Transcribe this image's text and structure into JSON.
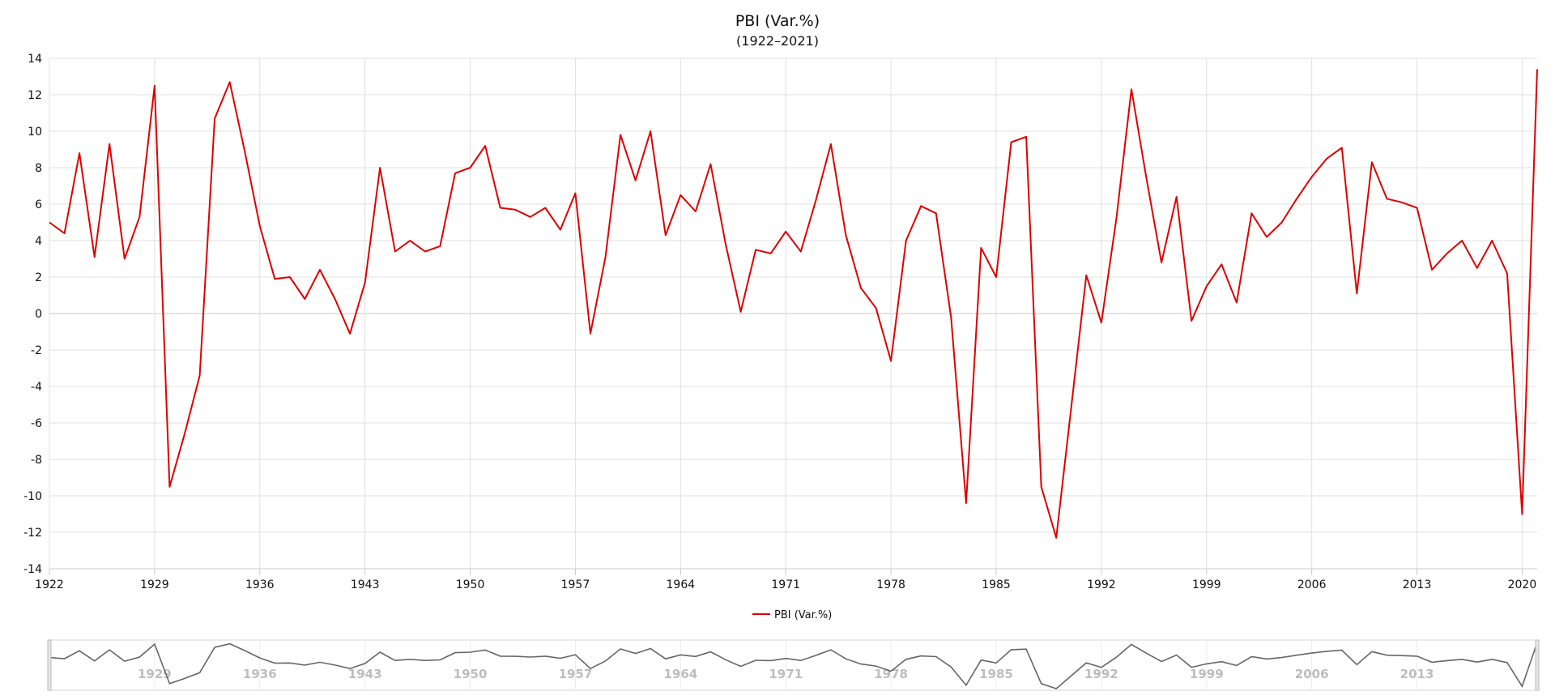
{
  "chart_data": {
    "type": "line",
    "title": "PBI (Var.%)",
    "subtitle": "(1922–2021)",
    "xlabel": "",
    "ylabel": "",
    "xlim": [
      1922,
      2021
    ],
    "ylim": [
      -14,
      14
    ],
    "x_ticks": [
      1922,
      1929,
      1936,
      1943,
      1950,
      1957,
      1964,
      1971,
      1978,
      1985,
      1992,
      1999,
      2006,
      2013,
      2020
    ],
    "y_ticks": [
      -14,
      -12,
      -10,
      -8,
      -6,
      -4,
      -2,
      0,
      2,
      4,
      6,
      8,
      10,
      12,
      14
    ],
    "grid": true,
    "legend": "bottom-center",
    "navigator_labels": [
      1929,
      1936,
      1943,
      1950,
      1957,
      1964,
      1971,
      1978,
      1985,
      1992,
      1999,
      2006,
      2013
    ],
    "colors": {
      "series": "#dd0000",
      "navigator": "#666666",
      "grid": "#e0e0e0"
    },
    "series": [
      {
        "name": "PBI (Var.%)",
        "x": [
          1922,
          1923,
          1924,
          1925,
          1926,
          1927,
          1928,
          1929,
          1930,
          1931,
          1932,
          1933,
          1934,
          1935,
          1936,
          1937,
          1938,
          1939,
          1940,
          1941,
          1942,
          1943,
          1944,
          1945,
          1946,
          1947,
          1948,
          1949,
          1950,
          1951,
          1952,
          1953,
          1954,
          1955,
          1956,
          1957,
          1958,
          1959,
          1960,
          1961,
          1962,
          1963,
          1964,
          1965,
          1966,
          1967,
          1968,
          1969,
          1970,
          1971,
          1972,
          1973,
          1974,
          1975,
          1976,
          1977,
          1978,
          1979,
          1980,
          1981,
          1982,
          1983,
          1984,
          1985,
          1986,
          1987,
          1988,
          1989,
          1990,
          1991,
          1992,
          1993,
          1994,
          1995,
          1996,
          1997,
          1998,
          1999,
          2000,
          2001,
          2002,
          2003,
          2004,
          2005,
          2006,
          2007,
          2008,
          2009,
          2010,
          2011,
          2012,
          2013,
          2014,
          2015,
          2016,
          2017,
          2018,
          2019,
          2020,
          2021
        ],
        "values": [
          5.0,
          4.4,
          8.8,
          3.1,
          9.3,
          3.0,
          5.3,
          12.5,
          -9.5,
          -6.6,
          -3.4,
          10.7,
          12.7,
          8.9,
          4.8,
          1.9,
          2.0,
          0.8,
          2.4,
          0.8,
          -1.1,
          1.7,
          8.0,
          3.4,
          4.0,
          3.4,
          3.7,
          7.7,
          8.0,
          9.2,
          5.8,
          5.7,
          5.3,
          5.8,
          4.6,
          6.6,
          -1.1,
          3.1,
          9.8,
          7.3,
          10.0,
          4.3,
          6.5,
          5.6,
          8.2,
          3.8,
          0.1,
          3.5,
          3.3,
          4.5,
          3.4,
          6.2,
          9.3,
          4.3,
          1.4,
          0.3,
          -2.6,
          4.0,
          5.9,
          5.5,
          -0.2,
          -10.4,
          3.6,
          2.0,
          9.4,
          9.7,
          -9.5,
          -12.3,
          -5.1,
          2.1,
          -0.5,
          5.2,
          12.3,
          7.4,
          2.8,
          6.4,
          -0.4,
          1.5,
          2.7,
          0.6,
          5.5,
          4.2,
          5.0,
          6.3,
          7.5,
          8.5,
          9.1,
          1.1,
          8.3,
          6.3,
          6.1,
          5.8,
          2.4,
          3.3,
          4.0,
          2.5,
          4.0,
          2.2,
          -11.0,
          13.4
        ]
      }
    ]
  }
}
